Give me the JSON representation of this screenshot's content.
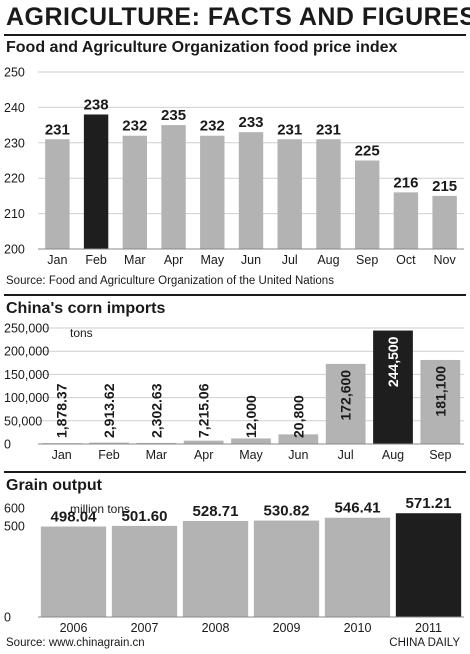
{
  "header": {
    "title": "AGRICULTURE: FACTS AND FIGURES"
  },
  "colors": {
    "bar": "#b3b3b3",
    "highlight": "#1e1e1e",
    "grid": "#cfcfcf",
    "text": "#1a1a1a"
  },
  "chart_data": [
    {
      "type": "bar",
      "title": "Food and Agriculture Organization food price index",
      "unit": "",
      "categories": [
        "Jan",
        "Feb",
        "Mar",
        "Apr",
        "May",
        "Jun",
        "Jul",
        "Aug",
        "Sep",
        "Oct",
        "Nov"
      ],
      "values": [
        231,
        238,
        232,
        235,
        232,
        233,
        231,
        231,
        225,
        216,
        215
      ],
      "value_labels": [
        "231",
        "238",
        "232",
        "235",
        "232",
        "233",
        "231",
        "231",
        "225",
        "216",
        "215"
      ],
      "highlight": "Feb",
      "ylim": [
        200,
        250
      ],
      "yticks": [
        200,
        210,
        220,
        230,
        240,
        250
      ],
      "ytick_labels": [
        "200",
        "210",
        "220",
        "230",
        "240",
        "250"
      ],
      "label_style": "above",
      "grid": true,
      "source": "Source: Food and Agriculture Organization of the United Nations"
    },
    {
      "type": "bar",
      "title": "China's corn imports",
      "unit": "tons",
      "categories": [
        "Jan",
        "Feb",
        "Mar",
        "Apr",
        "May",
        "Jun",
        "Jul",
        "Aug",
        "Sep"
      ],
      "values": [
        1878.37,
        2913.62,
        2302.63,
        7215.06,
        12000,
        20800,
        172600,
        244500,
        181100
      ],
      "value_labels": [
        "1,878.37",
        "2,913.62",
        "2,302.63",
        "7,215.06",
        "12,000",
        "20,800",
        "172,600",
        "244,500",
        "181,100"
      ],
      "highlight": "Aug",
      "ylim": [
        0,
        250000
      ],
      "yticks": [
        0,
        50000,
        100000,
        150000,
        200000,
        250000
      ],
      "ytick_labels": [
        "0",
        "50,000",
        "100,000",
        "150,000",
        "200,000",
        "250,000"
      ],
      "label_style": "vertical",
      "grid": true,
      "source": ""
    },
    {
      "type": "bar",
      "title": "Grain output",
      "unit": "million tons",
      "categories": [
        "2006",
        "2007",
        "2008",
        "2009",
        "2010",
        "2011"
      ],
      "values": [
        498.04,
        501.6,
        528.71,
        530.82,
        546.41,
        571.21
      ],
      "value_labels": [
        "498.04",
        "501.60",
        "528.71",
        "530.82",
        "546.41",
        "571.21"
      ],
      "highlight": "2011",
      "ylim": [
        0,
        600
      ],
      "yticks": [
        0,
        100,
        200,
        300,
        400,
        500,
        600
      ],
      "ytick_labels": [
        "0",
        "",
        "",
        "",
        "",
        "500",
        "600"
      ],
      "label_style": "above",
      "grid": false,
      "source": "Source: www.chinagrain.cn"
    }
  ],
  "footer": {
    "credit": "CHINA DAILY"
  }
}
